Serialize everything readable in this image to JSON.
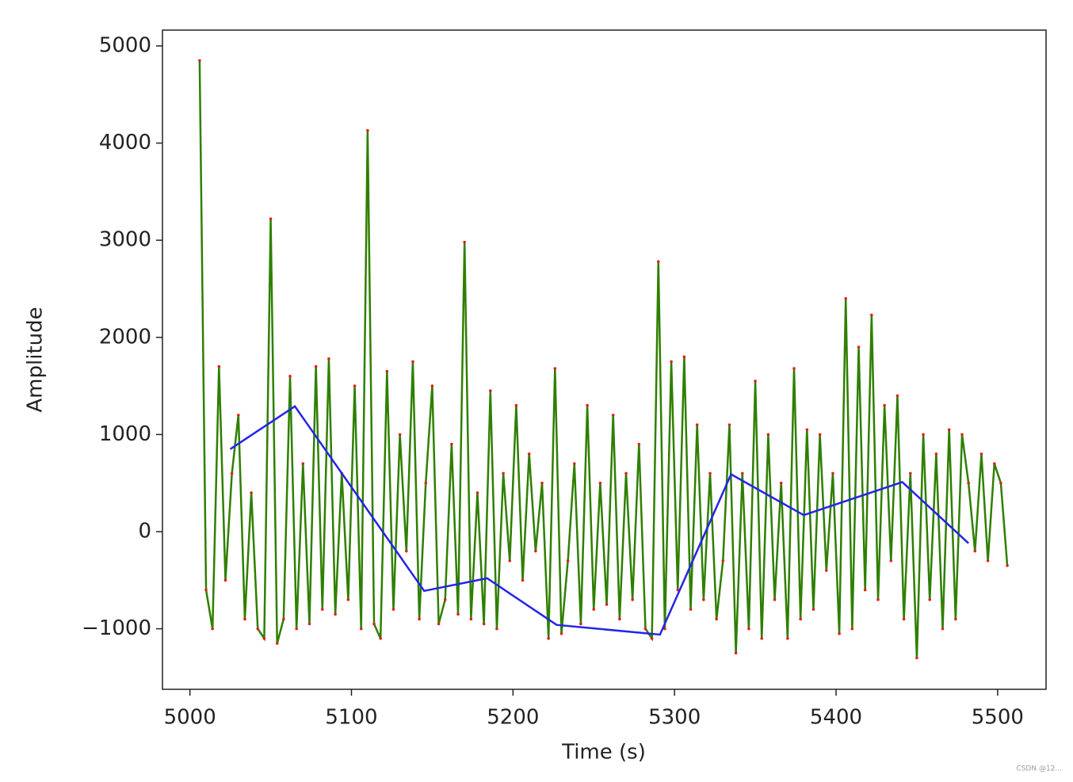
{
  "chart_data": {
    "type": "line",
    "xlabel": "Time (s)",
    "ylabel": "Amplitude",
    "xlim": [
      4983,
      5530
    ],
    "ylim": [
      -1623,
      5163
    ],
    "xticks": [
      5000,
      5100,
      5200,
      5300,
      5400,
      5500
    ],
    "yticks": [
      {
        "value": -1000,
        "label": "−1000"
      },
      0,
      1000,
      2000,
      3000,
      4000,
      5000
    ],
    "series": [
      {
        "color": "#2f7f00",
        "marker_color": "#e02020",
        "x": [
          5006,
          5010,
          5014,
          5018,
          5022,
          5026,
          5030,
          5034,
          5038,
          5042,
          5046,
          5050,
          5054,
          5058,
          5062,
          5066,
          5070,
          5074,
          5078,
          5082,
          5086,
          5090,
          5094,
          5098,
          5102,
          5106,
          5110,
          5114,
          5118,
          5122,
          5126,
          5130,
          5134,
          5138,
          5142,
          5146,
          5150,
          5154,
          5158,
          5162,
          5166,
          5170,
          5174,
          5178,
          5182,
          5186,
          5190,
          5194,
          5198,
          5202,
          5206,
          5210,
          5214,
          5218,
          5222,
          5226,
          5230,
          5234,
          5238,
          5242,
          5246,
          5250,
          5254,
          5258,
          5262,
          5266,
          5270,
          5274,
          5278,
          5282,
          5286,
          5290,
          5294,
          5298,
          5302,
          5306,
          5310,
          5314,
          5318,
          5322,
          5326,
          5330,
          5334,
          5338,
          5342,
          5346,
          5350,
          5354,
          5358,
          5362,
          5366,
          5370,
          5374,
          5378,
          5382,
          5386,
          5390,
          5394,
          5398,
          5402,
          5406,
          5410,
          5414,
          5418,
          5422,
          5426,
          5430,
          5434,
          5438,
          5442,
          5446,
          5450,
          5454,
          5458,
          5462,
          5466,
          5470,
          5474,
          5478,
          5482,
          5486,
          5490,
          5494,
          5498,
          5502,
          5506
        ],
        "values": [
          4850,
          -600,
          -1000,
          1700,
          -500,
          600,
          1200,
          -900,
          400,
          -1000,
          -1100,
          3220,
          -1150,
          -900,
          1600,
          -1000,
          700,
          -950,
          1700,
          -800,
          1780,
          -850,
          600,
          -700,
          1500,
          -1000,
          4130,
          -950,
          -1100,
          1650,
          -800,
          1000,
          -200,
          1750,
          -900,
          500,
          1500,
          -950,
          -700,
          900,
          -850,
          2980,
          -900,
          400,
          -950,
          1450,
          -1000,
          600,
          -300,
          1300,
          -500,
          800,
          -200,
          500,
          -1100,
          1680,
          -1050,
          -300,
          700,
          -950,
          1300,
          -800,
          500,
          -750,
          1200,
          -900,
          600,
          -700,
          900,
          -1000,
          -1100,
          2780,
          -1000,
          1750,
          -600,
          1800,
          -800,
          1100,
          -700,
          600,
          -900,
          -300,
          1100,
          -1250,
          600,
          -1000,
          1550,
          -1100,
          1000,
          -700,
          500,
          -1100,
          1680,
          -900,
          1050,
          -800,
          1000,
          -400,
          600,
          -1050,
          2400,
          -1000,
          1900,
          -600,
          2230,
          -700,
          1300,
          -300,
          1400,
          -900,
          600,
          -1300,
          1000,
          -700,
          800,
          -1000,
          1050,
          -900,
          1000,
          500,
          -200,
          800,
          -300,
          700,
          500,
          -350
        ]
      },
      {
        "color": "#2424e8",
        "x": [
          5025,
          5065,
          5145,
          5184,
          5227,
          5291,
          5335,
          5380,
          5441,
          5482
        ],
        "values": [
          850,
          1290,
          -610,
          -480,
          -960,
          -1060,
          590,
          170,
          510,
          -120
        ]
      }
    ],
    "watermark": "CSDN @12..."
  }
}
